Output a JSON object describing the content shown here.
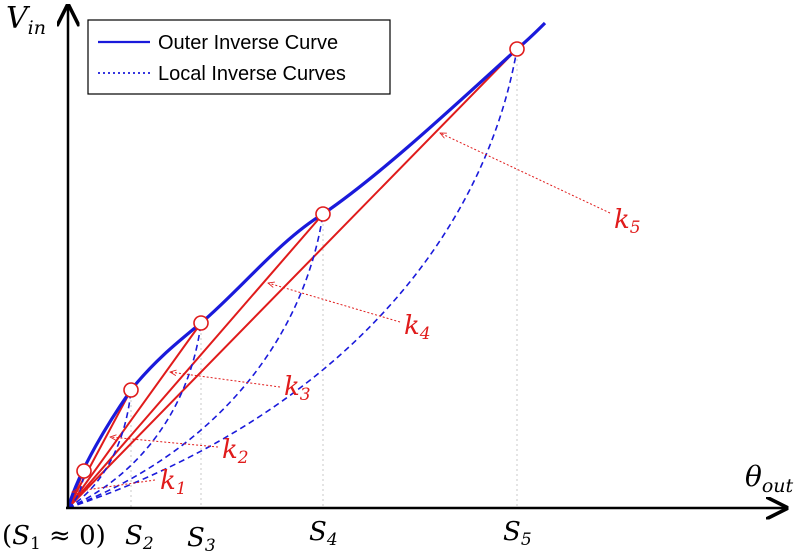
{
  "legend": {
    "outer": "Outer Inverse Curve",
    "local": "Local Inverse Curves"
  },
  "axes": {
    "y_symbol": "V",
    "y_sub": "in",
    "x_symbol": "θ",
    "x_sub": "out"
  },
  "ticks": [
    {
      "text": "(",
      "sym": "S",
      "sub": "1",
      "post": " ≈ 0)"
    },
    {
      "sym": "S",
      "sub": "2"
    },
    {
      "sym": "S",
      "sub": "3"
    },
    {
      "sym": "S",
      "sub": "4"
    },
    {
      "sym": "S",
      "sub": "5"
    }
  ],
  "k_labels": [
    {
      "sym": "k",
      "sub": "1"
    },
    {
      "sym": "k",
      "sub": "2"
    },
    {
      "sym": "k",
      "sub": "3"
    },
    {
      "sym": "k",
      "sub": "4"
    },
    {
      "sym": "k",
      "sub": "5"
    }
  ],
  "colors": {
    "outer": "#1a1adb",
    "local": "#1a1adb",
    "chord": "#e01b1b",
    "axis": "#000000",
    "annot": "#e01b1b",
    "guide": "#c8c8c8"
  }
}
